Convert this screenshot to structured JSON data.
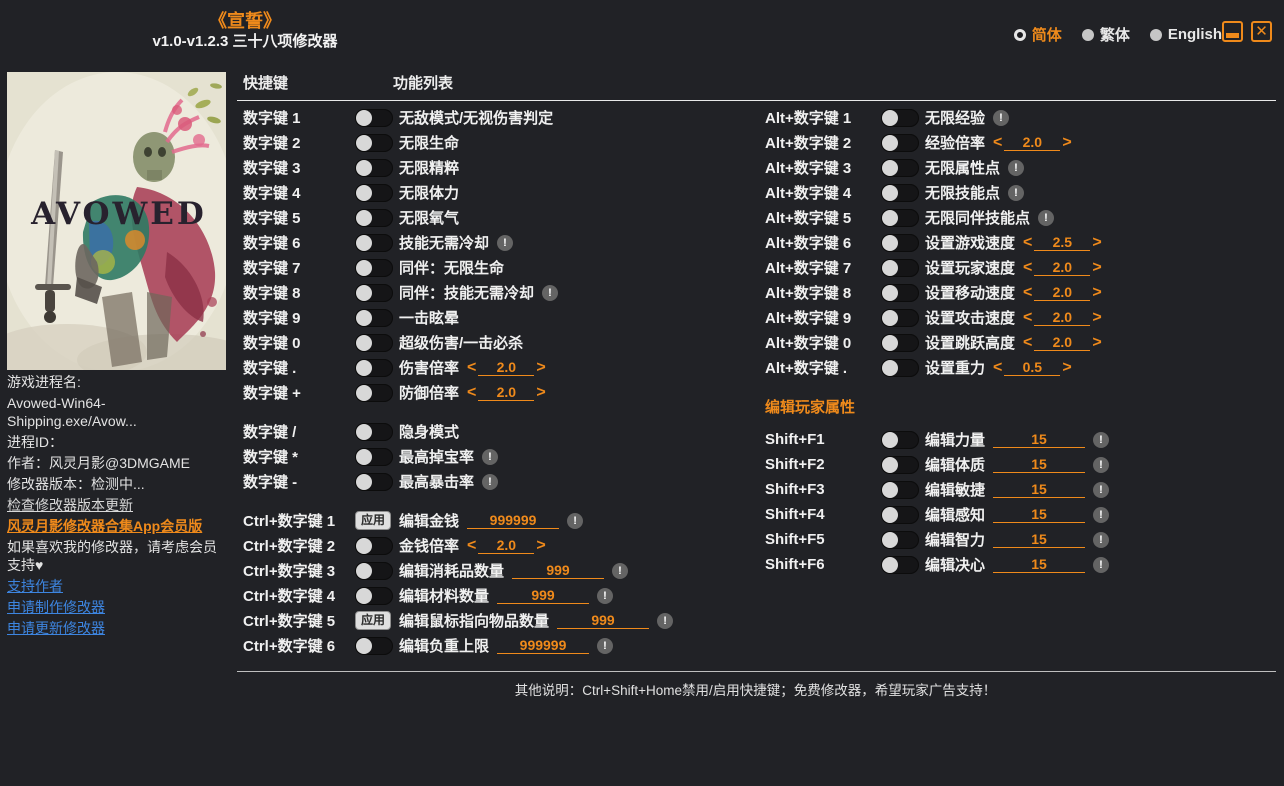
{
  "titlebar": {
    "title": "《宣誓》",
    "subtitle": "v1.0-v1.2.3 三十八项修改器",
    "languages": [
      {
        "label": "简体",
        "selected": true
      },
      {
        "label": "繁体",
        "selected": false
      },
      {
        "label": "English",
        "selected": false
      }
    ]
  },
  "sidebar": {
    "cover_game_title": "AVOWED",
    "process_name_label": "游戏进程名:",
    "process_name": "Avowed-Win64-Shipping.exe/Avow...",
    "process_id_label": "进程ID：",
    "author_line": "作者：风灵月影@3DMGAME",
    "version_line": "修改器版本：检测中...",
    "check_update_link": "检查修改器版本更新",
    "app_member_link": "风灵月影修改器合集App会员版",
    "support_line": "如果喜欢我的修改器，请考虑会员支持♥",
    "links": [
      "支持作者",
      "申请制作修改器",
      "申请更新修改器"
    ]
  },
  "main": {
    "header_hotkey": "快捷键",
    "header_function": "功能列表",
    "apply_button_label": "应用",
    "attr_section_title": "编辑玩家属性",
    "left_groups": [
      [
        {
          "hotkey": "数字键 1",
          "control": "toggle",
          "label": "无敌模式/无视伤害判定"
        },
        {
          "hotkey": "数字键 2",
          "control": "toggle",
          "label": "无限生命"
        },
        {
          "hotkey": "数字键 3",
          "control": "toggle",
          "label": "无限精粹"
        },
        {
          "hotkey": "数字键 4",
          "control": "toggle",
          "label": "无限体力"
        },
        {
          "hotkey": "数字键 5",
          "control": "toggle",
          "label": "无限氧气"
        },
        {
          "hotkey": "数字键 6",
          "control": "toggle",
          "label": "技能无需冷却",
          "warn": true
        },
        {
          "hotkey": "数字键 7",
          "control": "toggle",
          "label": "同伴：无限生命"
        },
        {
          "hotkey": "数字键 8",
          "control": "toggle",
          "label": "同伴：技能无需冷却",
          "warn": true
        },
        {
          "hotkey": "数字键 9",
          "control": "toggle",
          "label": "一击眩晕"
        },
        {
          "hotkey": "数字键 0",
          "control": "toggle",
          "label": "超级伤害/一击必杀"
        },
        {
          "hotkey": "数字键 .",
          "control": "toggle",
          "label": "伤害倍率",
          "spinner": "2.0"
        },
        {
          "hotkey": "数字键 +",
          "control": "toggle",
          "label": "防御倍率",
          "spinner": "2.0"
        }
      ],
      [
        {
          "hotkey": "数字键 /",
          "control": "toggle",
          "label": "隐身模式"
        },
        {
          "hotkey": "数字键 *",
          "control": "toggle",
          "label": "最高掉宝率",
          "warn": true
        },
        {
          "hotkey": "数字键 -",
          "control": "toggle",
          "label": "最高暴击率",
          "warn": true
        }
      ],
      [
        {
          "hotkey": "Ctrl+数字键 1",
          "control": "button",
          "label": "编辑金钱",
          "input": "999999",
          "warn": true
        },
        {
          "hotkey": "Ctrl+数字键 2",
          "control": "toggle",
          "label": "金钱倍率",
          "spinner": "2.0"
        },
        {
          "hotkey": "Ctrl+数字键 3",
          "control": "toggle",
          "label": "编辑消耗品数量",
          "input": "999",
          "warn": true
        },
        {
          "hotkey": "Ctrl+数字键 4",
          "control": "toggle",
          "label": "编辑材料数量",
          "input": "999",
          "warn": true
        },
        {
          "hotkey": "Ctrl+数字键 5",
          "control": "button",
          "label": "编辑鼠标指向物品数量",
          "input": "999",
          "warn": true
        },
        {
          "hotkey": "Ctrl+数字键 6",
          "control": "toggle",
          "label": "编辑负重上限",
          "input": "999999",
          "warn": true
        }
      ]
    ],
    "right_groups": [
      [
        {
          "hotkey": "Alt+数字键 1",
          "control": "toggle",
          "label": "无限经验",
          "warn": true
        },
        {
          "hotkey": "Alt+数字键 2",
          "control": "toggle",
          "label": "经验倍率",
          "spinner": "2.0"
        },
        {
          "hotkey": "Alt+数字键 3",
          "control": "toggle",
          "label": "无限属性点",
          "warn": true
        },
        {
          "hotkey": "Alt+数字键 4",
          "control": "toggle",
          "label": "无限技能点",
          "warn": true
        },
        {
          "hotkey": "Alt+数字键 5",
          "control": "toggle",
          "label": "无限同伴技能点",
          "warn": true
        },
        {
          "hotkey": "Alt+数字键 6",
          "control": "toggle",
          "label": "设置游戏速度",
          "spinner": "2.5"
        },
        {
          "hotkey": "Alt+数字键 7",
          "control": "toggle",
          "label": "设置玩家速度",
          "spinner": "2.0"
        },
        {
          "hotkey": "Alt+数字键 8",
          "control": "toggle",
          "label": "设置移动速度",
          "spinner": "2.0"
        },
        {
          "hotkey": "Alt+数字键 9",
          "control": "toggle",
          "label": "设置攻击速度",
          "spinner": "2.0"
        },
        {
          "hotkey": "Alt+数字键 0",
          "control": "toggle",
          "label": "设置跳跃高度",
          "spinner": "2.0"
        },
        {
          "hotkey": "Alt+数字键 .",
          "control": "toggle",
          "label": "设置重力",
          "spinner": "0.5"
        }
      ],
      [
        {
          "hotkey": "Shift+F1",
          "control": "toggle",
          "label": "编辑力量",
          "input": "15",
          "warn": true
        },
        {
          "hotkey": "Shift+F2",
          "control": "toggle",
          "label": "编辑体质",
          "input": "15",
          "warn": true
        },
        {
          "hotkey": "Shift+F3",
          "control": "toggle",
          "label": "编辑敏捷",
          "input": "15",
          "warn": true
        },
        {
          "hotkey": "Shift+F4",
          "control": "toggle",
          "label": "编辑感知",
          "input": "15",
          "warn": true
        },
        {
          "hotkey": "Shift+F5",
          "control": "toggle",
          "label": "编辑智力",
          "input": "15",
          "warn": true
        },
        {
          "hotkey": "Shift+F6",
          "control": "toggle",
          "label": "编辑决心",
          "input": "15",
          "warn": true
        }
      ]
    ],
    "footer_note": "其他说明：Ctrl+Shift+Home禁用/启用快捷键；免费修改器，希望玩家广告支持！"
  },
  "colors": {
    "accent_orange": "#EF8A1B",
    "link_blue": "#3D85E0",
    "background": "#212226",
    "toggle_knob": "#d8d8d8",
    "warn_gray": "#646464"
  }
}
